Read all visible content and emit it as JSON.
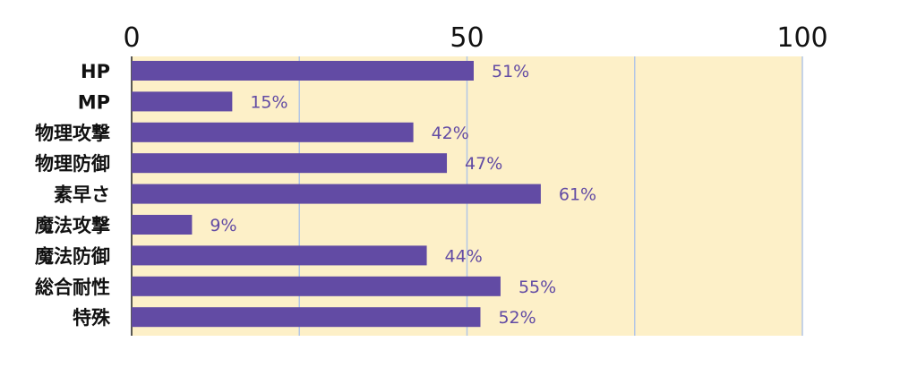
{
  "chart_data": {
    "type": "bar",
    "orientation": "horizontal",
    "categories": [
      "HP",
      "MP",
      "物理攻撃",
      "物理防御",
      "素早さ",
      "魔法攻撃",
      "魔法防御",
      "総合耐性",
      "特殊"
    ],
    "values": [
      51,
      15,
      42,
      47,
      61,
      9,
      44,
      55,
      52
    ],
    "data_labels": [
      "51%",
      "15%",
      "42%",
      "47%",
      "61%",
      "9%",
      "44%",
      "55%",
      "52%"
    ],
    "xlim": [
      0,
      100
    ],
    "major_ticks": [
      0,
      50,
      100
    ],
    "tick_labels": [
      "0",
      "50",
      "100"
    ],
    "minor_gridlines": [
      25,
      75
    ],
    "grid": true,
    "axis_position": "top",
    "colors": {
      "bar": "#624ba4",
      "plot_background": "#fdf0c8",
      "gridline": "#b3c6e6",
      "label": "#624ba4"
    }
  }
}
